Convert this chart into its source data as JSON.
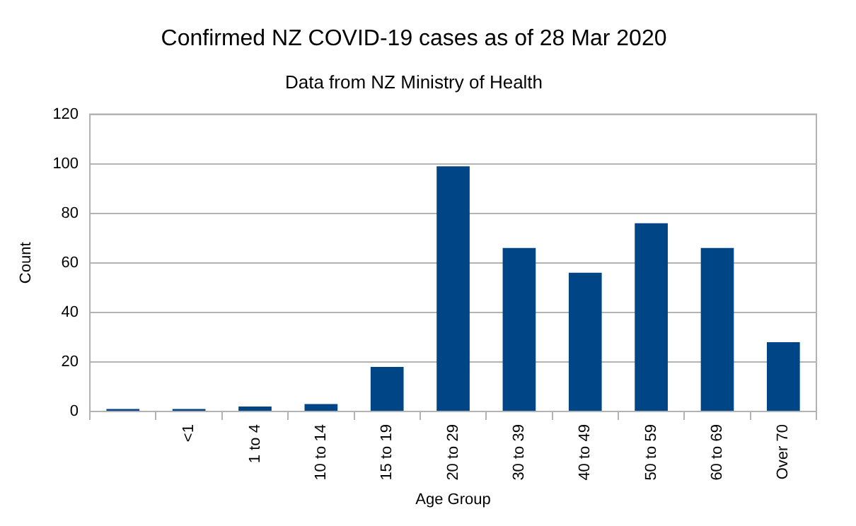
{
  "chart_data": {
    "type": "bar",
    "title": "Confirmed NZ COVID-19 cases as of 28 Mar 2020",
    "subtitle": "Data from NZ Ministry of Health",
    "xlabel": "Age Group",
    "ylabel": "Count",
    "categories": [
      null,
      "<1",
      "1 to 4",
      "10 to 14",
      "15 to 19",
      "20 to 29",
      "30 to 39",
      "40 to 49",
      "50 to 59",
      "60 to 69",
      "Over 70"
    ],
    "values": [
      1,
      1,
      2,
      3,
      18,
      99,
      66,
      56,
      76,
      66,
      28
    ],
    "color": "#004586",
    "ylim": [
      0,
      120
    ],
    "yticks": [
      0,
      20,
      40,
      60,
      80,
      100,
      120
    ],
    "grid": "y",
    "legend": false
  }
}
